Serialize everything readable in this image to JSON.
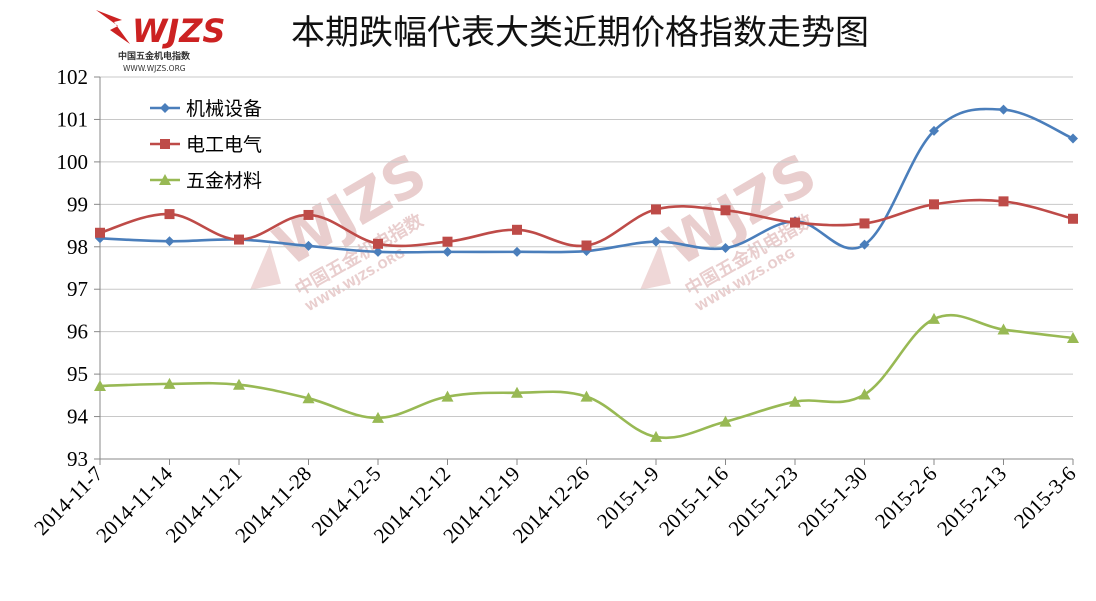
{
  "logo": {
    "text": "WJZS",
    "subtitle": "中国五金机电指数",
    "url": "WWW.WJZS.ORG"
  },
  "watermark": {
    "text": "WJZS",
    "subtitle": "中国五金机电指数",
    "url": "WWW.WJZS.ORG"
  },
  "chart_data": {
    "type": "line",
    "title": "本期跌幅代表大类近期价格指数走势图",
    "xlabel": "",
    "ylabel": "",
    "ylim": [
      93,
      102
    ],
    "yticks": [
      93,
      94,
      95,
      96,
      97,
      98,
      99,
      100,
      101,
      102
    ],
    "grid": true,
    "legend_position": "top-left",
    "categories": [
      "2014-11-7",
      "2014-11-14",
      "2014-11-21",
      "2014-11-28",
      "2014-12-5",
      "2014-12-12",
      "2014-12-19",
      "2014-12-26",
      "2015-1-9",
      "2015-1-16",
      "2015-1-23",
      "2015-1-30",
      "2015-2-6",
      "2015-2-13",
      "2015-3-6"
    ],
    "series": [
      {
        "name": "机械设备",
        "color": "#4a7ebb",
        "marker": "diamond",
        "values": [
          98.2,
          98.13,
          98.17,
          98.02,
          97.88,
          97.88,
          97.88,
          97.9,
          98.12,
          97.97,
          98.6,
          98.05,
          100.73,
          101.23,
          100.55
        ]
      },
      {
        "name": "电工电气",
        "color": "#be4b48",
        "marker": "square",
        "values": [
          98.33,
          98.77,
          98.17,
          98.75,
          98.07,
          98.12,
          98.4,
          98.03,
          98.88,
          98.86,
          98.57,
          98.55,
          99.0,
          99.07,
          98.66
        ]
      },
      {
        "name": "五金材料",
        "color": "#98b954",
        "marker": "triangle",
        "values": [
          94.72,
          94.77,
          94.75,
          94.43,
          93.97,
          94.47,
          94.56,
          94.47,
          93.52,
          93.88,
          94.35,
          94.52,
          96.3,
          96.05,
          95.85
        ]
      }
    ]
  }
}
